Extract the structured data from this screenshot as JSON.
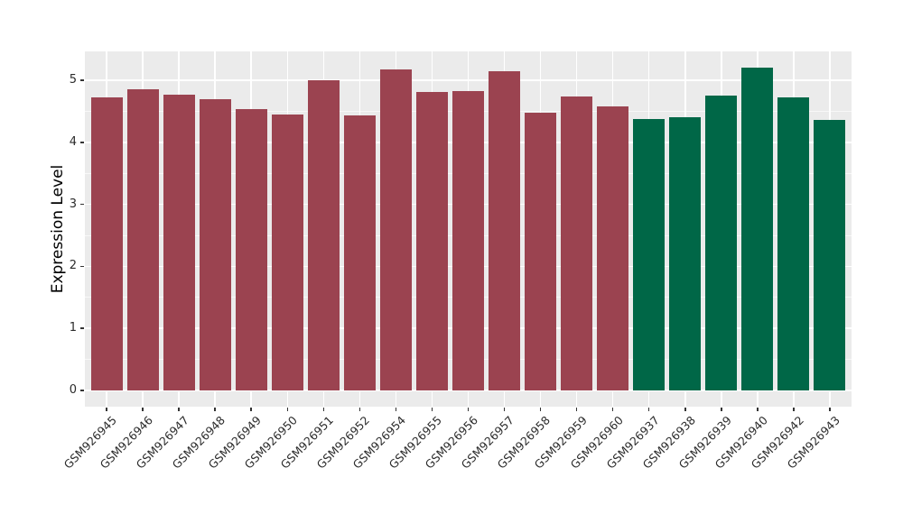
{
  "figure": {
    "background": "#FFFFFF",
    "panel_background": "#EBEBEB",
    "gridline_color": "#FFFFFF",
    "tick_color": "#333333",
    "text_color": "#2b2b2b"
  },
  "chart_data": {
    "type": "bar",
    "title": "",
    "xlabel": "",
    "ylabel": "Expression Level",
    "categories": [
      "GSM926945",
      "GSM926946",
      "GSM926947",
      "GSM926948",
      "GSM926949",
      "GSM926950",
      "GSM926951",
      "GSM926952",
      "GSM926954",
      "GSM926955",
      "GSM926956",
      "GSM926957",
      "GSM926958",
      "GSM926959",
      "GSM926960",
      "GSM926937",
      "GSM926938",
      "GSM926939",
      "GSM926940",
      "GSM926942",
      "GSM926943"
    ],
    "values": [
      4.72,
      4.86,
      4.77,
      4.7,
      4.54,
      4.45,
      5.0,
      4.43,
      5.17,
      4.81,
      4.83,
      5.15,
      4.48,
      4.74,
      4.58,
      4.37,
      4.4,
      4.76,
      5.21,
      4.72,
      4.36
    ],
    "colors": [
      "#9B4350",
      "#9B4350",
      "#9B4350",
      "#9B4350",
      "#9B4350",
      "#9B4350",
      "#9B4350",
      "#9B4350",
      "#9B4350",
      "#9B4350",
      "#9B4350",
      "#9B4350",
      "#9B4350",
      "#9B4350",
      "#9B4350",
      "#006747",
      "#006747",
      "#006747",
      "#006747",
      "#006747",
      "#006747"
    ],
    "color_groups": [
      {
        "color": "#9B4350",
        "first_category": "GSM926945",
        "last_category": "GSM926960",
        "count": 15
      },
      {
        "color": "#006747",
        "first_category": "GSM926937",
        "last_category": "GSM926943",
        "count": 6
      }
    ],
    "yticks": [
      0,
      1,
      2,
      3,
      4,
      5
    ],
    "ytick_labels": [
      "0",
      "1",
      "2",
      "3",
      "4",
      "5"
    ],
    "ylim": [
      0,
      5.46
    ],
    "grid": "major-and-minor",
    "grid_vertical": "at-category-centers",
    "legend_position": "none",
    "x_tick_label_rotation_deg": 45
  }
}
